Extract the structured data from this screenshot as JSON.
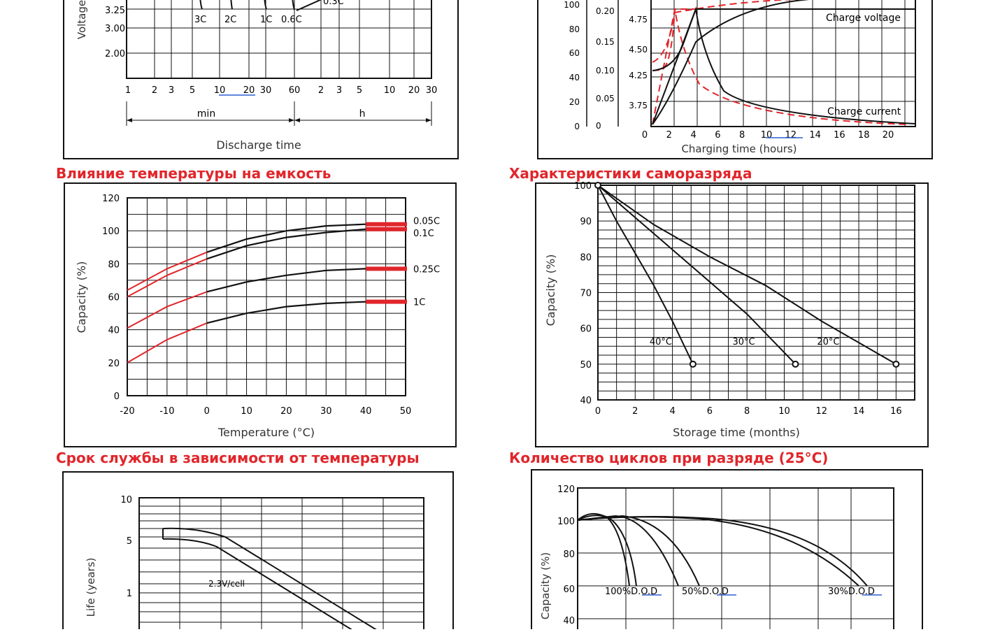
{
  "colors": {
    "red": "#e0262b",
    "black": "#111111",
    "link": "#2f5fd0",
    "heading": "#e0262b"
  },
  "headings": {
    "temp_capacity": "Влияние температуры на емкость",
    "self_discharge": "Характеристики саморазряда",
    "service_life": "Срок службы в зависимости от температуры",
    "cycles": "Количество циклов при разряде (25°C)"
  },
  "chart_data": [
    {
      "id": "discharge",
      "type": "line",
      "ylabel": "Voltage",
      "xlabel": "Discharge time",
      "y_ticks": [
        "3.25",
        "3.00",
        "2.00"
      ],
      "x_ticks_min": [
        "1",
        "2",
        "3",
        "5",
        "10",
        "20",
        "30",
        "60"
      ],
      "x_ticks_h": [
        "2",
        "3",
        "5",
        "10",
        "20",
        "30"
      ],
      "unit_min": "min",
      "unit_h": "h",
      "series_labels": [
        "3C",
        "2C",
        "1C",
        "0.6C",
        "0.3C"
      ]
    },
    {
      "id": "charge",
      "type": "line",
      "xlabel": "Charging time (hours)",
      "x_ticks": [
        "0",
        "2",
        "4",
        "6",
        "8",
        "10",
        "12",
        "14",
        "16",
        "18",
        "20"
      ],
      "y_ticks_left": [
        "0",
        "20",
        "40",
        "60",
        "80",
        "100"
      ],
      "y_ticks_mid": [
        "0",
        "0.05",
        "0.10",
        "0.15",
        "0.20"
      ],
      "y_ticks_right": [
        "3.75",
        "4.25",
        "4.50",
        "4.75"
      ],
      "annotations": [
        "Charge voltage",
        "Charge current"
      ]
    },
    {
      "id": "temp_capacity",
      "type": "line",
      "xlabel": "Temperature (°C)",
      "ylabel": "Capacity (%)",
      "x_ticks": [
        "-20",
        "-10",
        "0",
        "10",
        "20",
        "30",
        "40",
        "50"
      ],
      "y_ticks": [
        "0",
        "20",
        "40",
        "60",
        "80",
        "100",
        "120"
      ],
      "xlim": [
        -20,
        50
      ],
      "ylim": [
        0,
        120
      ],
      "series": [
        {
          "name": "0.05C",
          "x": [
            -20,
            -10,
            0,
            10,
            20,
            30,
            40
          ],
          "y": [
            64,
            77,
            87,
            95,
            100,
            103,
            104
          ]
        },
        {
          "name": "0.1C",
          "x": [
            -20,
            -10,
            0,
            10,
            20,
            30,
            40
          ],
          "y": [
            60,
            73,
            83,
            91,
            96,
            99,
            101
          ]
        },
        {
          "name": "0.25C",
          "x": [
            -20,
            -10,
            0,
            10,
            20,
            30,
            40
          ],
          "y": [
            41,
            54,
            63,
            69,
            73,
            76,
            77
          ]
        },
        {
          "name": "1C",
          "x": [
            -20,
            -10,
            0,
            10,
            20,
            30,
            40
          ],
          "y": [
            20,
            34,
            44,
            50,
            54,
            56,
            57
          ]
        }
      ]
    },
    {
      "id": "self_discharge",
      "type": "line",
      "xlabel": "Storage time (months)",
      "ylabel": "Capacity (%)",
      "x_ticks": [
        "0",
        "2",
        "4",
        "6",
        "8",
        "10",
        "12",
        "14",
        "16"
      ],
      "y_ticks": [
        "40",
        "50",
        "60",
        "70",
        "80",
        "90",
        "100"
      ],
      "xlim": [
        0,
        17
      ],
      "ylim": [
        40,
        100
      ],
      "series": [
        {
          "name": "40°C",
          "x": [
            0,
            1,
            2,
            3,
            4,
            5.1
          ],
          "y": [
            100,
            90,
            81,
            72,
            62,
            50
          ]
        },
        {
          "name": "30°C",
          "x": [
            0,
            2,
            4,
            6,
            8,
            10.6
          ],
          "y": [
            100,
            91,
            82,
            73,
            64,
            50
          ]
        },
        {
          "name": "20°C",
          "x": [
            0,
            3,
            6,
            9,
            12,
            16
          ],
          "y": [
            100,
            89,
            80,
            72,
            62,
            50
          ]
        }
      ]
    },
    {
      "id": "service_life",
      "type": "line",
      "ylabel": "Life (years)",
      "y_ticks": [
        "10",
        "5",
        "1"
      ],
      "annotations": [
        "2.3V/cell"
      ]
    },
    {
      "id": "cycles",
      "type": "line",
      "ylabel": "Capacity (%)",
      "y_ticks": [
        "120",
        "100",
        "80",
        "60",
        "40"
      ],
      "series_labels": [
        "100%D.O.D",
        "50%D.O.D",
        "30%D.O.D"
      ]
    }
  ]
}
